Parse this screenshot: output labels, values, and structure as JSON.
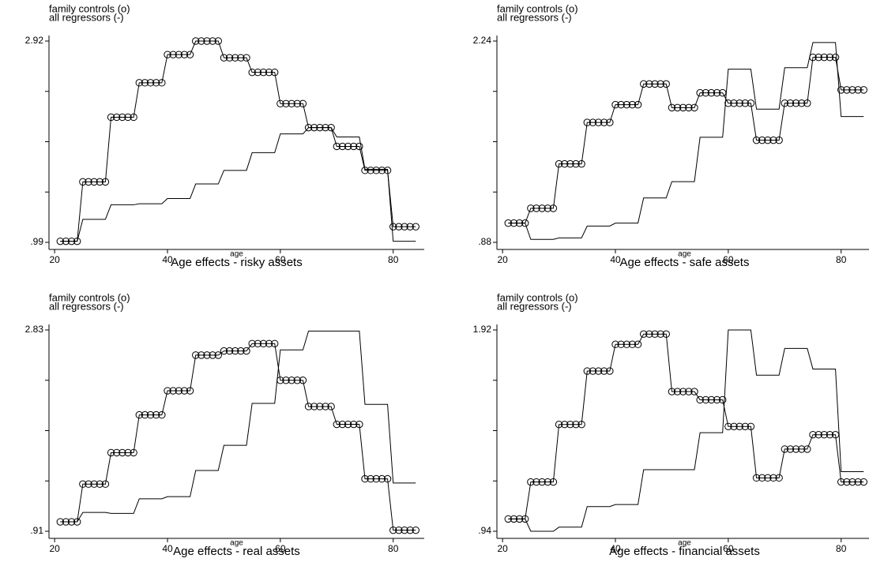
{
  "chart_data": [
    {
      "type": "line",
      "title": "Age effects - risky assets",
      "x_label": "age",
      "x": [
        21,
        22,
        23,
        24,
        25,
        26,
        27,
        28,
        29,
        30,
        31,
        32,
        33,
        34,
        35,
        36,
        37,
        38,
        39,
        40,
        41,
        42,
        43,
        44,
        45,
        46,
        47,
        48,
        49,
        50,
        51,
        52,
        53,
        54,
        55,
        56,
        57,
        58,
        59,
        60,
        61,
        62,
        63,
        64,
        65,
        66,
        67,
        68,
        69,
        70,
        71,
        72,
        73,
        74,
        75,
        76,
        77,
        78,
        79,
        80,
        81,
        82,
        83,
        84
      ],
      "xlim": [
        19,
        85.5
      ],
      "xticks": [
        20,
        40,
        60,
        80
      ],
      "ylim": [
        0.99,
        2.92
      ],
      "yticks": [
        {
          "value": 0.99,
          "label": ".99"
        },
        2.92
      ],
      "series": [
        {
          "name": "family controls (o)",
          "color": "#000000",
          "markers": true,
          "values": [
            1.0,
            1.0,
            1.0,
            1.0,
            1.57,
            1.57,
            1.57,
            1.57,
            1.57,
            2.19,
            2.19,
            2.19,
            2.19,
            2.19,
            2.52,
            2.52,
            2.52,
            2.52,
            2.52,
            2.79,
            2.79,
            2.79,
            2.79,
            2.79,
            2.92,
            2.92,
            2.92,
            2.92,
            2.92,
            2.76,
            2.76,
            2.76,
            2.76,
            2.76,
            2.62,
            2.62,
            2.62,
            2.62,
            2.62,
            2.32,
            2.32,
            2.32,
            2.32,
            2.32,
            2.09,
            2.09,
            2.09,
            2.09,
            2.09,
            1.91,
            1.91,
            1.91,
            1.91,
            1.91,
            1.68,
            1.68,
            1.68,
            1.68,
            1.68,
            1.14,
            1.14,
            1.14,
            1.14,
            1.14
          ]
        },
        {
          "name": "all regressors (-)",
          "color": "#000000",
          "markers": false,
          "values": [
            1.0,
            1.0,
            1.0,
            1.0,
            1.21,
            1.21,
            1.21,
            1.21,
            1.21,
            1.35,
            1.35,
            1.35,
            1.35,
            1.35,
            1.36,
            1.36,
            1.36,
            1.36,
            1.36,
            1.41,
            1.41,
            1.41,
            1.41,
            1.41,
            1.55,
            1.55,
            1.55,
            1.55,
            1.55,
            1.68,
            1.68,
            1.68,
            1.68,
            1.68,
            1.85,
            1.85,
            1.85,
            1.85,
            1.85,
            2.03,
            2.03,
            2.03,
            2.03,
            2.03,
            2.09,
            2.09,
            2.09,
            2.09,
            2.09,
            2.0,
            2.0,
            2.0,
            2.0,
            2.0,
            1.69,
            1.69,
            1.69,
            1.69,
            1.69,
            1.0,
            1.0,
            1.0,
            1.0,
            1.0
          ]
        }
      ]
    },
    {
      "type": "line",
      "title": "Age effects - safe assets",
      "x_label": "age",
      "x": [
        21,
        22,
        23,
        24,
        25,
        26,
        27,
        28,
        29,
        30,
        31,
        32,
        33,
        34,
        35,
        36,
        37,
        38,
        39,
        40,
        41,
        42,
        43,
        44,
        45,
        46,
        47,
        48,
        49,
        50,
        51,
        52,
        53,
        54,
        55,
        56,
        57,
        58,
        59,
        60,
        61,
        62,
        63,
        64,
        65,
        66,
        67,
        68,
        69,
        70,
        71,
        72,
        73,
        74,
        75,
        76,
        77,
        78,
        79,
        80,
        81,
        82,
        83,
        84
      ],
      "xlim": [
        19,
        85.5
      ],
      "xticks": [
        20,
        40,
        60,
        80
      ],
      "ylim": [
        0.88,
        2.24
      ],
      "yticks": [
        {
          "value": 0.88,
          "label": ".88"
        },
        2.24
      ],
      "series": [
        {
          "name": "family controls (o)",
          "color": "#000000",
          "markers": true,
          "values": [
            1.01,
            1.01,
            1.01,
            1.01,
            1.11,
            1.11,
            1.11,
            1.11,
            1.11,
            1.41,
            1.41,
            1.41,
            1.41,
            1.41,
            1.69,
            1.69,
            1.69,
            1.69,
            1.69,
            1.81,
            1.81,
            1.81,
            1.81,
            1.81,
            1.95,
            1.95,
            1.95,
            1.95,
            1.95,
            1.79,
            1.79,
            1.79,
            1.79,
            1.79,
            1.89,
            1.89,
            1.89,
            1.89,
            1.89,
            1.82,
            1.82,
            1.82,
            1.82,
            1.82,
            1.57,
            1.57,
            1.57,
            1.57,
            1.57,
            1.82,
            1.82,
            1.82,
            1.82,
            1.82,
            2.13,
            2.13,
            2.13,
            2.13,
            2.13,
            1.91,
            1.91,
            1.91,
            1.91,
            1.91
          ]
        },
        {
          "name": "all regressors (-)",
          "color": "#000000",
          "markers": false,
          "values": [
            1.01,
            1.01,
            1.01,
            1.01,
            0.9,
            0.9,
            0.9,
            0.9,
            0.9,
            0.91,
            0.91,
            0.91,
            0.91,
            0.91,
            0.99,
            0.99,
            0.99,
            0.99,
            0.99,
            1.01,
            1.01,
            1.01,
            1.01,
            1.01,
            1.18,
            1.18,
            1.18,
            1.18,
            1.18,
            1.29,
            1.29,
            1.29,
            1.29,
            1.29,
            1.59,
            1.59,
            1.59,
            1.59,
            1.59,
            2.05,
            2.05,
            2.05,
            2.05,
            2.05,
            1.78,
            1.78,
            1.78,
            1.78,
            1.78,
            2.06,
            2.06,
            2.06,
            2.06,
            2.06,
            2.23,
            2.23,
            2.23,
            2.23,
            2.23,
            1.73,
            1.73,
            1.73,
            1.73,
            1.73
          ]
        }
      ]
    },
    {
      "type": "line",
      "title": "Age effects - real assets",
      "x_label": "age",
      "x": [
        21,
        22,
        23,
        24,
        25,
        26,
        27,
        28,
        29,
        30,
        31,
        32,
        33,
        34,
        35,
        36,
        37,
        38,
        39,
        40,
        41,
        42,
        43,
        44,
        45,
        46,
        47,
        48,
        49,
        50,
        51,
        52,
        53,
        54,
        55,
        56,
        57,
        58,
        59,
        60,
        61,
        62,
        63,
        64,
        65,
        66,
        67,
        68,
        69,
        70,
        71,
        72,
        73,
        74,
        75,
        76,
        77,
        78,
        79,
        80,
        81,
        82,
        83,
        84
      ],
      "xlim": [
        19,
        85.5
      ],
      "xticks": [
        20,
        40,
        60,
        80
      ],
      "ylim": [
        0.91,
        2.83
      ],
      "yticks": [
        {
          "value": 0.91,
          "label": ".91"
        },
        2.83
      ],
      "series": [
        {
          "name": "family controls (o)",
          "color": "#000000",
          "markers": true,
          "values": [
            1.0,
            1.0,
            1.0,
            1.0,
            1.36,
            1.36,
            1.36,
            1.36,
            1.36,
            1.66,
            1.66,
            1.66,
            1.66,
            1.66,
            2.02,
            2.02,
            2.02,
            2.02,
            2.02,
            2.25,
            2.25,
            2.25,
            2.25,
            2.25,
            2.59,
            2.59,
            2.59,
            2.59,
            2.59,
            2.63,
            2.63,
            2.63,
            2.63,
            2.63,
            2.7,
            2.7,
            2.7,
            2.7,
            2.7,
            2.35,
            2.35,
            2.35,
            2.35,
            2.35,
            2.1,
            2.1,
            2.1,
            2.1,
            2.1,
            1.93,
            1.93,
            1.93,
            1.93,
            1.93,
            1.41,
            1.41,
            1.41,
            1.41,
            1.41,
            0.92,
            0.92,
            0.92,
            0.92,
            0.92
          ]
        },
        {
          "name": "all regressors (-)",
          "color": "#000000",
          "markers": false,
          "values": [
            1.0,
            1.0,
            1.0,
            1.0,
            1.09,
            1.09,
            1.09,
            1.09,
            1.09,
            1.08,
            1.08,
            1.08,
            1.08,
            1.08,
            1.22,
            1.22,
            1.22,
            1.22,
            1.22,
            1.24,
            1.24,
            1.24,
            1.24,
            1.24,
            1.49,
            1.49,
            1.49,
            1.49,
            1.49,
            1.73,
            1.73,
            1.73,
            1.73,
            1.73,
            2.13,
            2.13,
            2.13,
            2.13,
            2.13,
            2.64,
            2.64,
            2.64,
            2.64,
            2.64,
            2.82,
            2.82,
            2.82,
            2.82,
            2.82,
            2.82,
            2.82,
            2.82,
            2.82,
            2.82,
            2.12,
            2.12,
            2.12,
            2.12,
            2.12,
            1.37,
            1.37,
            1.37,
            1.37,
            1.37
          ]
        }
      ]
    },
    {
      "type": "line",
      "title": "Age effects - financial assets",
      "x_label": "age",
      "x": [
        21,
        22,
        23,
        24,
        25,
        26,
        27,
        28,
        29,
        30,
        31,
        32,
        33,
        34,
        35,
        36,
        37,
        38,
        39,
        40,
        41,
        42,
        43,
        44,
        45,
        46,
        47,
        48,
        49,
        50,
        51,
        52,
        53,
        54,
        55,
        56,
        57,
        58,
        59,
        60,
        61,
        62,
        63,
        64,
        65,
        66,
        67,
        68,
        69,
        70,
        71,
        72,
        73,
        74,
        75,
        76,
        77,
        78,
        79,
        80,
        81,
        82,
        83,
        84
      ],
      "xlim": [
        19,
        85.5
      ],
      "xticks": [
        20,
        40,
        60,
        80
      ],
      "ylim": [
        0.94,
        1.92
      ],
      "yticks": [
        {
          "value": 0.94,
          "label": ".94"
        },
        1.92
      ],
      "series": [
        {
          "name": "family controls (o)",
          "color": "#000000",
          "markers": true,
          "values": [
            1.0,
            1.0,
            1.0,
            1.0,
            1.18,
            1.18,
            1.18,
            1.18,
            1.18,
            1.46,
            1.46,
            1.46,
            1.46,
            1.46,
            1.72,
            1.72,
            1.72,
            1.72,
            1.72,
            1.85,
            1.85,
            1.85,
            1.85,
            1.85,
            1.9,
            1.9,
            1.9,
            1.9,
            1.9,
            1.62,
            1.62,
            1.62,
            1.62,
            1.62,
            1.58,
            1.58,
            1.58,
            1.58,
            1.58,
            1.45,
            1.45,
            1.45,
            1.45,
            1.45,
            1.2,
            1.2,
            1.2,
            1.2,
            1.2,
            1.34,
            1.34,
            1.34,
            1.34,
            1.34,
            1.41,
            1.41,
            1.41,
            1.41,
            1.41,
            1.18,
            1.18,
            1.18,
            1.18,
            1.18
          ]
        },
        {
          "name": "all regressors (-)",
          "color": "#000000",
          "markers": false,
          "values": [
            1.0,
            1.0,
            1.0,
            1.0,
            0.94,
            0.94,
            0.94,
            0.94,
            0.94,
            0.96,
            0.96,
            0.96,
            0.96,
            0.96,
            1.06,
            1.06,
            1.06,
            1.06,
            1.06,
            1.07,
            1.07,
            1.07,
            1.07,
            1.07,
            1.24,
            1.24,
            1.24,
            1.24,
            1.24,
            1.24,
            1.24,
            1.24,
            1.24,
            1.24,
            1.42,
            1.42,
            1.42,
            1.42,
            1.42,
            1.92,
            1.92,
            1.92,
            1.92,
            1.92,
            1.7,
            1.7,
            1.7,
            1.7,
            1.7,
            1.83,
            1.83,
            1.83,
            1.83,
            1.83,
            1.73,
            1.73,
            1.73,
            1.73,
            1.73,
            1.23,
            1.23,
            1.23,
            1.23,
            1.23
          ]
        }
      ]
    }
  ]
}
